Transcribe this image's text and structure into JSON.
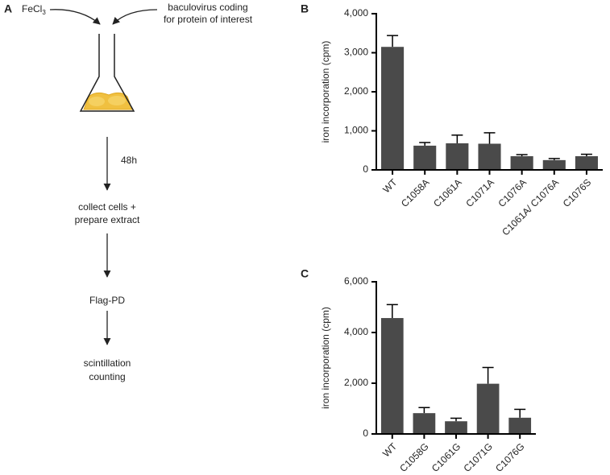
{
  "diagram": {
    "panel_label": "A",
    "fecl3": {
      "text": "FeCl",
      "subscript": "3"
    },
    "virus": [
      "baculovirus coding",
      "for protein of interest"
    ],
    "time": "48h",
    "steps": [
      [
        "collect cells +",
        "prepare extract"
      ],
      [
        "Flag-PD"
      ],
      [
        "scintillation",
        "counting"
      ]
    ]
  },
  "chart_data": [
    {
      "type": "bar",
      "panel_label": "B",
      "ylabel": "iron incorporation (cpm)",
      "categories": [
        "WT",
        "C1058A",
        "C1061A",
        "C1071A",
        "C1076A",
        "C1061A/ C1076A",
        "C1076S"
      ],
      "values": [
        3150,
        620,
        680,
        670,
        350,
        250,
        350
      ],
      "errors": [
        290,
        80,
        210,
        280,
        40,
        40,
        50
      ],
      "color": "#4a4a4a",
      "ylim": [
        0,
        4000
      ],
      "yticks": [
        0,
        {
          "value": 1000,
          "label": "1,000"
        },
        {
          "value": 2000,
          "label": "2,000"
        },
        {
          "value": 3000,
          "label": "3,000"
        },
        {
          "value": 4000,
          "label": "4,000"
        }
      ]
    },
    {
      "type": "bar",
      "panel_label": "C",
      "ylabel": "iron incorporation (cpm)",
      "categories": [
        "WT",
        "C1058G",
        "C1061G",
        "C1071G",
        "C1076G"
      ],
      "values": [
        4570,
        820,
        500,
        1980,
        640
      ],
      "errors": [
        530,
        220,
        120,
        640,
        330
      ],
      "color": "#4a4a4a",
      "ylim": [
        0,
        6000
      ],
      "yticks": [
        0,
        {
          "value": 2000,
          "label": "2,000"
        },
        {
          "value": 4000,
          "label": "4,000"
        },
        {
          "value": 6000,
          "label": "6,000"
        }
      ]
    }
  ]
}
